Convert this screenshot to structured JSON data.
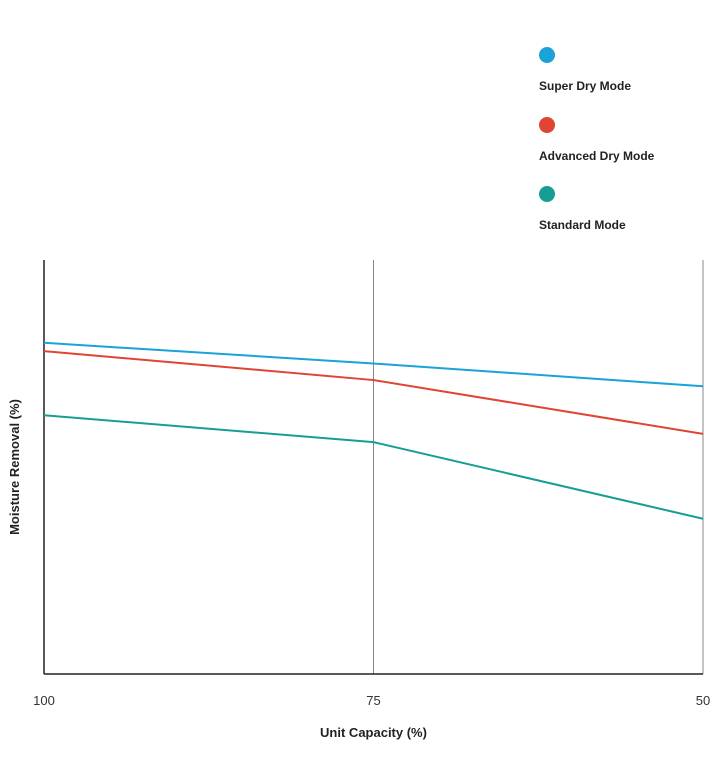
{
  "chart_data": {
    "type": "line",
    "title": "",
    "xlabel": "Unit Capacity (%)",
    "ylabel": "Moisture Removal (%)",
    "x": [
      100,
      75,
      50
    ],
    "ylim": [
      0,
      100
    ],
    "grid": "vertical",
    "legend_position": "top-right",
    "series": [
      {
        "name": "Super Dry Mode",
        "color": "#1aa3d9",
        "values": [
          80,
          75,
          69.5
        ]
      },
      {
        "name": "Advanced Dry Mode",
        "color": "#e04433",
        "values": [
          78,
          71,
          58
        ]
      },
      {
        "name": "Standard Mode",
        "color": "#179e93",
        "values": [
          62.5,
          56,
          37.5
        ]
      }
    ]
  }
}
